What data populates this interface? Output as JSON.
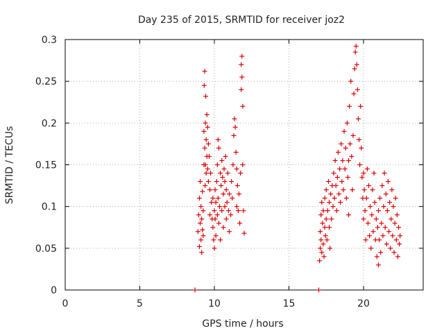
{
  "chart_data": {
    "type": "scatter",
    "title": "Day 235 of 2015, SRMTID for receiver joz2",
    "xlabel": "GPS time / hours",
    "ylabel": "SRMTID / TECUs",
    "xlim": [
      0,
      24
    ],
    "ylim": [
      0,
      0.3
    ],
    "xticks": [
      0,
      5,
      10,
      15,
      20
    ],
    "yticks": [
      0,
      0.05,
      0.1,
      0.15,
      0.2,
      0.25,
      0.3
    ],
    "xtick_labels": [
      "0",
      "5",
      "10",
      "15",
      "20"
    ],
    "ytick_labels": [
      "0",
      "0.05",
      "0.1",
      "0.15",
      "0.2",
      "0.25",
      "0.3"
    ],
    "grid": true,
    "marker": "+",
    "color": "#dd0000",
    "series": [
      {
        "points": [
          [
            8.7,
            0.0
          ],
          [
            17.0,
            0.0
          ],
          [
            8.9,
            0.07
          ],
          [
            8.95,
            0.09
          ],
          [
            9.0,
            0.052
          ],
          [
            9.0,
            0.11
          ],
          [
            9.05,
            0.08
          ],
          [
            9.05,
            0.13
          ],
          [
            9.1,
            0.06
          ],
          [
            9.1,
            0.1
          ],
          [
            9.15,
            0.045
          ],
          [
            9.15,
            0.085
          ],
          [
            9.2,
            0.072
          ],
          [
            9.2,
            0.118
          ],
          [
            9.25,
            0.095
          ],
          [
            9.25,
            0.065
          ],
          [
            9.3,
            0.15
          ],
          [
            9.3,
            0.19
          ],
          [
            9.32,
            0.245
          ],
          [
            9.35,
            0.262
          ],
          [
            9.35,
            0.17
          ],
          [
            9.38,
            0.125
          ],
          [
            9.4,
            0.2
          ],
          [
            9.4,
            0.15
          ],
          [
            9.42,
            0.232
          ],
          [
            9.45,
            0.18
          ],
          [
            9.45,
            0.14
          ],
          [
            9.5,
            0.21
          ],
          [
            9.5,
            0.16
          ],
          [
            9.55,
            0.195
          ],
          [
            9.55,
            0.145
          ],
          [
            9.6,
            0.175
          ],
          [
            9.6,
            0.13
          ],
          [
            9.65,
            0.16
          ],
          [
            9.7,
            0.12
          ],
          [
            9.7,
            0.09
          ],
          [
            9.75,
            0.14
          ],
          [
            9.8,
            0.105
          ],
          [
            9.85,
            0.085
          ],
          [
            9.9,
            0.075
          ],
          [
            9.9,
            0.11
          ],
          [
            9.95,
            0.06
          ],
          [
            10.0,
            0.095
          ],
          [
            10.0,
            0.05
          ],
          [
            10.05,
            0.12
          ],
          [
            10.05,
            0.085
          ],
          [
            10.1,
            0.065
          ],
          [
            10.1,
            0.105
          ],
          [
            10.15,
            0.13
          ],
          [
            10.2,
            0.09
          ],
          [
            10.2,
            0.15
          ],
          [
            10.25,
            0.18
          ],
          [
            10.25,
            0.11
          ],
          [
            10.3,
            0.17
          ],
          [
            10.3,
            0.08
          ],
          [
            10.35,
            0.1
          ],
          [
            10.4,
            0.14
          ],
          [
            10.4,
            0.06
          ],
          [
            10.45,
            0.125
          ],
          [
            10.5,
            0.155
          ],
          [
            10.5,
            0.095
          ],
          [
            10.55,
            0.135
          ],
          [
            10.6,
            0.115
          ],
          [
            10.6,
            0.075
          ],
          [
            10.65,
            0.145
          ],
          [
            10.7,
            0.1
          ],
          [
            10.7,
            0.13
          ],
          [
            10.75,
            0.16
          ],
          [
            10.8,
            0.12
          ],
          [
            10.8,
            0.085
          ],
          [
            10.85,
            0.105
          ],
          [
            10.9,
            0.14
          ],
          [
            10.95,
            0.095
          ],
          [
            11.0,
            0.115
          ],
          [
            11.0,
            0.07
          ],
          [
            11.1,
            0.09
          ],
          [
            11.15,
            0.13
          ],
          [
            11.2,
            0.11
          ],
          [
            11.25,
            0.15
          ],
          [
            11.3,
            0.185
          ],
          [
            11.35,
            0.205
          ],
          [
            11.4,
            0.195
          ],
          [
            11.45,
            0.165
          ],
          [
            11.5,
            0.145
          ],
          [
            11.5,
            0.1
          ],
          [
            11.55,
            0.125
          ],
          [
            11.6,
            0.095
          ],
          [
            11.65,
            0.115
          ],
          [
            11.7,
            0.08
          ],
          [
            11.75,
            0.14
          ],
          [
            11.8,
            0.24
          ],
          [
            11.8,
            0.27
          ],
          [
            11.85,
            0.28
          ],
          [
            11.85,
            0.255
          ],
          [
            11.9,
            0.22
          ],
          [
            11.9,
            0.15
          ],
          [
            11.95,
            0.095
          ],
          [
            12.0,
            0.068
          ],
          [
            17.05,
            0.035
          ],
          [
            17.1,
            0.05
          ],
          [
            17.1,
            0.07
          ],
          [
            17.15,
            0.09
          ],
          [
            17.15,
            0.06
          ],
          [
            17.2,
            0.045
          ],
          [
            17.2,
            0.105
          ],
          [
            17.25,
            0.08
          ],
          [
            17.3,
            0.055
          ],
          [
            17.3,
            0.095
          ],
          [
            17.35,
            0.04
          ],
          [
            17.4,
            0.075
          ],
          [
            17.4,
            0.11
          ],
          [
            17.45,
            0.065
          ],
          [
            17.5,
            0.085
          ],
          [
            17.5,
            0.12
          ],
          [
            17.55,
            0.06
          ],
          [
            17.6,
            0.095
          ],
          [
            17.65,
            0.13
          ],
          [
            17.7,
            0.075
          ],
          [
            17.7,
            0.105
          ],
          [
            17.75,
            0.05
          ],
          [
            17.8,
            0.115
          ],
          [
            17.85,
            0.085
          ],
          [
            17.9,
            0.125
          ],
          [
            17.95,
            0.1
          ],
          [
            18.0,
            0.14
          ],
          [
            18.05,
            0.11
          ],
          [
            18.1,
            0.155
          ],
          [
            18.15,
            0.125
          ],
          [
            18.2,
            0.095
          ],
          [
            18.25,
            0.135
          ],
          [
            18.3,
            0.165
          ],
          [
            18.35,
            0.115
          ],
          [
            18.4,
            0.145
          ],
          [
            18.45,
            0.105
          ],
          [
            18.5,
            0.175
          ],
          [
            18.55,
            0.13
          ],
          [
            18.6,
            0.155
          ],
          [
            18.65,
            0.12
          ],
          [
            18.7,
            0.19
          ],
          [
            18.75,
            0.145
          ],
          [
            18.8,
            0.17
          ],
          [
            18.85,
            0.11
          ],
          [
            18.9,
            0.2
          ],
          [
            18.95,
            0.135
          ],
          [
            19.0,
            0.155
          ],
          [
            19.0,
            0.09
          ],
          [
            19.05,
            0.22
          ],
          [
            19.1,
            0.175
          ],
          [
            19.15,
            0.25
          ],
          [
            19.2,
            0.16
          ],
          [
            19.25,
            0.12
          ],
          [
            19.3,
            0.185
          ],
          [
            19.35,
            0.235
          ],
          [
            19.4,
            0.265
          ],
          [
            19.45,
            0.285
          ],
          [
            19.5,
            0.292
          ],
          [
            19.55,
            0.27
          ],
          [
            19.6,
            0.24
          ],
          [
            19.65,
            0.205
          ],
          [
            19.7,
            0.18
          ],
          [
            19.75,
            0.15
          ],
          [
            19.8,
            0.22
          ],
          [
            19.85,
            0.17
          ],
          [
            19.9,
            0.135
          ],
          [
            19.95,
            0.11
          ],
          [
            20.0,
            0.085
          ],
          [
            20.0,
            0.14
          ],
          [
            20.05,
            0.12
          ],
          [
            20.1,
            0.095
          ],
          [
            20.15,
            0.06
          ],
          [
            20.2,
            0.11
          ],
          [
            20.25,
            0.145
          ],
          [
            20.3,
            0.08
          ],
          [
            20.35,
            0.125
          ],
          [
            20.4,
            0.065
          ],
          [
            20.45,
            0.1
          ],
          [
            20.5,
            0.05
          ],
          [
            20.55,
            0.09
          ],
          [
            20.6,
            0.12
          ],
          [
            20.65,
            0.07
          ],
          [
            20.7,
            0.14
          ],
          [
            20.75,
            0.105
          ],
          [
            20.8,
            0.06
          ],
          [
            20.85,
            0.085
          ],
          [
            20.9,
            0.04
          ],
          [
            20.95,
            0.075
          ],
          [
            21.0,
            0.03
          ],
          [
            21.0,
            0.095
          ],
          [
            21.05,
            0.06
          ],
          [
            21.1,
            0.11
          ],
          [
            21.15,
            0.045
          ],
          [
            21.2,
            0.08
          ],
          [
            21.25,
            0.125
          ],
          [
            21.3,
            0.065
          ],
          [
            21.35,
            0.1
          ],
          [
            21.4,
            0.14
          ],
          [
            21.45,
            0.075
          ],
          [
            21.5,
            0.115
          ],
          [
            21.55,
            0.055
          ],
          [
            21.6,
            0.095
          ],
          [
            21.65,
            0.13
          ],
          [
            21.7,
            0.07
          ],
          [
            21.75,
            0.105
          ],
          [
            21.8,
            0.05
          ],
          [
            21.85,
            0.085
          ],
          [
            21.9,
            0.12
          ],
          [
            21.95,
            0.065
          ],
          [
            22.0,
            0.1
          ],
          [
            22.05,
            0.045
          ],
          [
            22.1,
            0.08
          ],
          [
            22.15,
            0.11
          ],
          [
            22.2,
            0.06
          ],
          [
            22.25,
            0.09
          ],
          [
            22.3,
            0.04
          ],
          [
            22.35,
            0.075
          ],
          [
            22.4,
            0.055
          ],
          [
            22.45,
            0.065
          ]
        ]
      }
    ]
  }
}
